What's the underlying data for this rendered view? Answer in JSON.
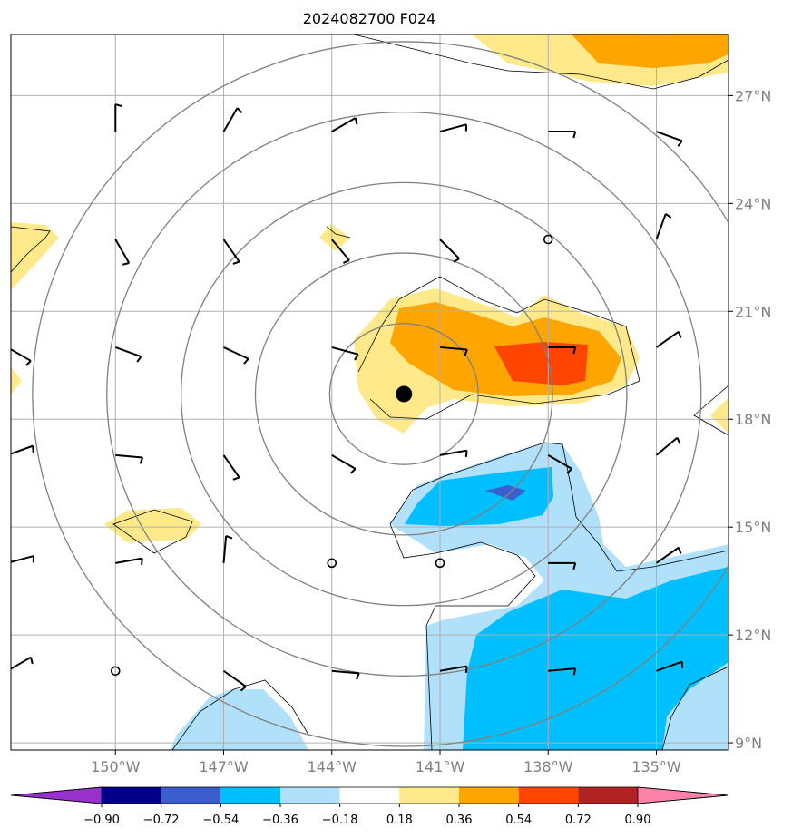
{
  "chart_data": {
    "type": "heatmap",
    "title": "2024082700 F024",
    "x_ticks": [
      "150°W",
      "147°W",
      "144°W",
      "141°W",
      "138°W",
      "135°W"
    ],
    "x_tick_values": [
      -150,
      -147,
      -144,
      -141,
      -138,
      -135
    ],
    "y_ticks": [
      "27°N",
      "24°N",
      "21°N",
      "18°N",
      "15°N",
      "12°N",
      "9°N"
    ],
    "y_tick_values": [
      27,
      24,
      21,
      18,
      15,
      12,
      9
    ],
    "xlim": [
      -152.9,
      -133.0
    ],
    "ylim": [
      8.8,
      28.7
    ],
    "grid": true,
    "center_marker": {
      "lon": -142.0,
      "lat": 18.7
    },
    "range_rings": [
      2,
      4,
      6,
      8,
      10
    ],
    "colorbar": {
      "levels": [
        "−0.90",
        "−0.72",
        "−0.54",
        "−0.36",
        "−0.18",
        "0.18",
        "0.36",
        "0.54",
        "0.72",
        "0.90"
      ],
      "colors": [
        "#9932cc",
        "#00008b",
        "#3a5fcd",
        "#00bfff",
        "#b0e0fa",
        "#ffffff",
        "#ffe98a",
        "#ffa500",
        "#ff4500",
        "#b22222",
        "#ff82ab"
      ],
      "extend": "both"
    },
    "calm_points": [
      [
        -138.0,
        23.0
      ],
      [
        -144.0,
        14.0
      ],
      [
        -141.0,
        14.0
      ],
      [
        -150.0,
        11.0
      ]
    ],
    "barbs": [
      {
        "lon": -153.0,
        "lat": 26.0,
        "angle": 290
      },
      {
        "lon": -150.0,
        "lat": 26.0,
        "angle": 0
      },
      {
        "lon": -147.0,
        "lat": 26.0,
        "angle": 30
      },
      {
        "lon": -144.0,
        "lat": 26.0,
        "angle": 60
      },
      {
        "lon": -141.0,
        "lat": 26.0,
        "angle": 75
      },
      {
        "lon": -138.0,
        "lat": 26.0,
        "angle": 90
      },
      {
        "lon": -135.0,
        "lat": 26.0,
        "angle": 110
      },
      {
        "lon": -150.0,
        "lat": 23.0,
        "angle": 150
      },
      {
        "lon": -147.0,
        "lat": 23.0,
        "angle": 145
      },
      {
        "lon": -144.0,
        "lat": 23.0,
        "angle": 140
      },
      {
        "lon": -141.0,
        "lat": 23.0,
        "angle": 135
      },
      {
        "lon": -135.0,
        "lat": 23.0,
        "angle": 20
      },
      {
        "lon": -153.0,
        "lat": 20.0,
        "angle": 120
      },
      {
        "lon": -150.0,
        "lat": 20.0,
        "angle": 110
      },
      {
        "lon": -147.0,
        "lat": 20.0,
        "angle": 115
      },
      {
        "lon": -144.0,
        "lat": 20.0,
        "angle": 105
      },
      {
        "lon": -141.0,
        "lat": 20.0,
        "angle": 95
      },
      {
        "lon": -138.0,
        "lat": 20.0,
        "angle": 90
      },
      {
        "lon": -135.0,
        "lat": 20.0,
        "angle": 55
      },
      {
        "lon": -153.0,
        "lat": 17.0,
        "angle": 70
      },
      {
        "lon": -150.0,
        "lat": 17.0,
        "angle": 95
      },
      {
        "lon": -147.0,
        "lat": 17.0,
        "angle": 145
      },
      {
        "lon": -144.0,
        "lat": 17.0,
        "angle": 120
      },
      {
        "lon": -141.0,
        "lat": 17.0,
        "angle": 80
      },
      {
        "lon": -138.0,
        "lat": 17.0,
        "angle": 120
      },
      {
        "lon": -135.0,
        "lat": 17.0,
        "angle": 50
      },
      {
        "lon": -153.0,
        "lat": 14.0,
        "angle": 75
      },
      {
        "lon": -150.0,
        "lat": 14.0,
        "angle": 80
      },
      {
        "lon": -147.0,
        "lat": 14.0,
        "angle": 5
      },
      {
        "lon": -138.0,
        "lat": 14.0,
        "angle": 90
      },
      {
        "lon": -135.0,
        "lat": 14.0,
        "angle": 55
      },
      {
        "lon": -153.0,
        "lat": 11.0,
        "angle": 60
      },
      {
        "lon": -147.0,
        "lat": 11.0,
        "angle": 125
      },
      {
        "lon": -144.0,
        "lat": 11.0,
        "angle": 95
      },
      {
        "lon": -141.0,
        "lat": 11.0,
        "angle": 80
      },
      {
        "lon": -138.0,
        "lat": 11.0,
        "angle": 85
      },
      {
        "lon": -135.0,
        "lat": 11.0,
        "angle": 70
      }
    ]
  }
}
